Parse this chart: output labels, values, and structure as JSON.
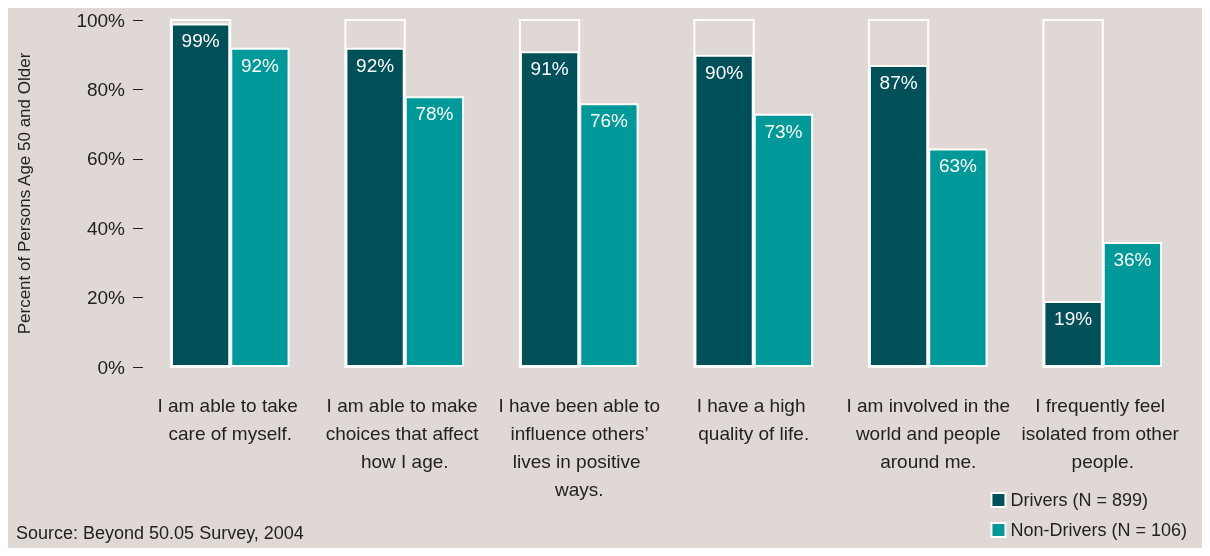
{
  "chart_data": {
    "type": "bar",
    "ylabel": "Percent of Persons Age 50 and Older",
    "categories": [
      "I am able to take care of myself.",
      "I am able to make choices that affect how I age.",
      "I have been able to influence others’ lives in positive ways.",
      "I have a high quality of life.",
      "I am involved in the world and people around me.",
      "I frequently feel isolated from other people."
    ],
    "series": [
      {
        "name": "Drivers (N = 899)",
        "color": "#00505a",
        "values": [
          99,
          92,
          91,
          90,
          87,
          19
        ],
        "value_labels": [
          "99%",
          "92%",
          "91%",
          "90%",
          "87%",
          "19%"
        ]
      },
      {
        "name": "Non-Drivers (N = 106)",
        "color": "#00999a",
        "values": [
          92,
          78,
          76,
          73,
          63,
          36
        ],
        "value_labels": [
          "92%",
          "78%",
          "76%",
          "73%",
          "63%",
          "36%"
        ]
      }
    ],
    "ylim": [
      0,
      100
    ],
    "yticks": [
      {
        "value": 0,
        "label": "0%"
      },
      {
        "value": 20,
        "label": "20%"
      },
      {
        "value": 40,
        "label": "40%"
      },
      {
        "value": 60,
        "label": "60%"
      },
      {
        "value": 80,
        "label": "80%"
      },
      {
        "value": 100,
        "label": "100%"
      }
    ],
    "grid": false,
    "legend": "bottom right",
    "annotations": [
      "Source: Beyond 50.05 Survey, 2004"
    ]
  }
}
